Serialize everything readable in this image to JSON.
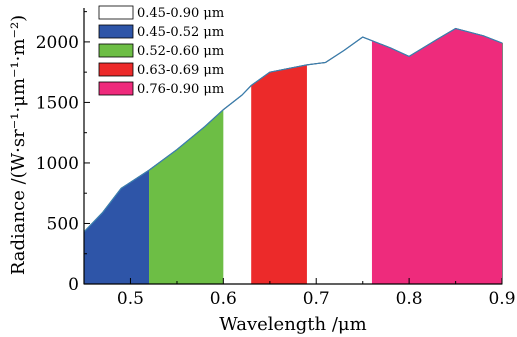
{
  "chart_data": {
    "type": "area",
    "xlabel": "Wavelength /μm",
    "ylabel": "Radiance /(W·sr⁻¹·μm⁻¹·m⁻²)",
    "xlim": [
      0.45,
      0.9
    ],
    "ylim": [
      0,
      2280
    ],
    "x_ticks": [
      0.5,
      0.6,
      0.7,
      0.8,
      0.9
    ],
    "x_tick_labels": [
      "0.5",
      "0.6",
      "0.7",
      "0.8",
      "0.9"
    ],
    "y_ticks": [
      0,
      500,
      1000,
      1500,
      2000
    ],
    "y_tick_labels": [
      "0",
      "500",
      "1000",
      "1500",
      "2000"
    ],
    "grid": false,
    "legend_position": "top-left",
    "curve": {
      "x": [
        0.45,
        0.47,
        0.49,
        0.52,
        0.55,
        0.58,
        0.6,
        0.62,
        0.63,
        0.65,
        0.67,
        0.69,
        0.7,
        0.71,
        0.73,
        0.75,
        0.76,
        0.78,
        0.8,
        0.83,
        0.85,
        0.88,
        0.9
      ],
      "y": [
        430,
        590,
        790,
        940,
        1110,
        1300,
        1440,
        1560,
        1640,
        1750,
        1780,
        1810,
        1820,
        1830,
        1930,
        2040,
        2010,
        1950,
        1880,
        2020,
        2110,
        2050,
        1990
      ]
    },
    "bands": [
      {
        "name": "0.45-0.90 μm",
        "range": [
          0.45,
          0.9
        ],
        "color": "#ffffff"
      },
      {
        "name": "0.45-0.52 μm",
        "range": [
          0.45,
          0.52
        ],
        "color": "#2e55a8"
      },
      {
        "name": "0.52-0.60 μm",
        "range": [
          0.52,
          0.6
        ],
        "color": "#6dbe45"
      },
      {
        "name": "0.63-0.69 μm",
        "range": [
          0.63,
          0.69
        ],
        "color": "#ec2a2a"
      },
      {
        "name": "0.76-0.90 μm",
        "range": [
          0.76,
          0.9
        ],
        "color": "#ee2b7c"
      }
    ],
    "outline_color": "#000000"
  }
}
